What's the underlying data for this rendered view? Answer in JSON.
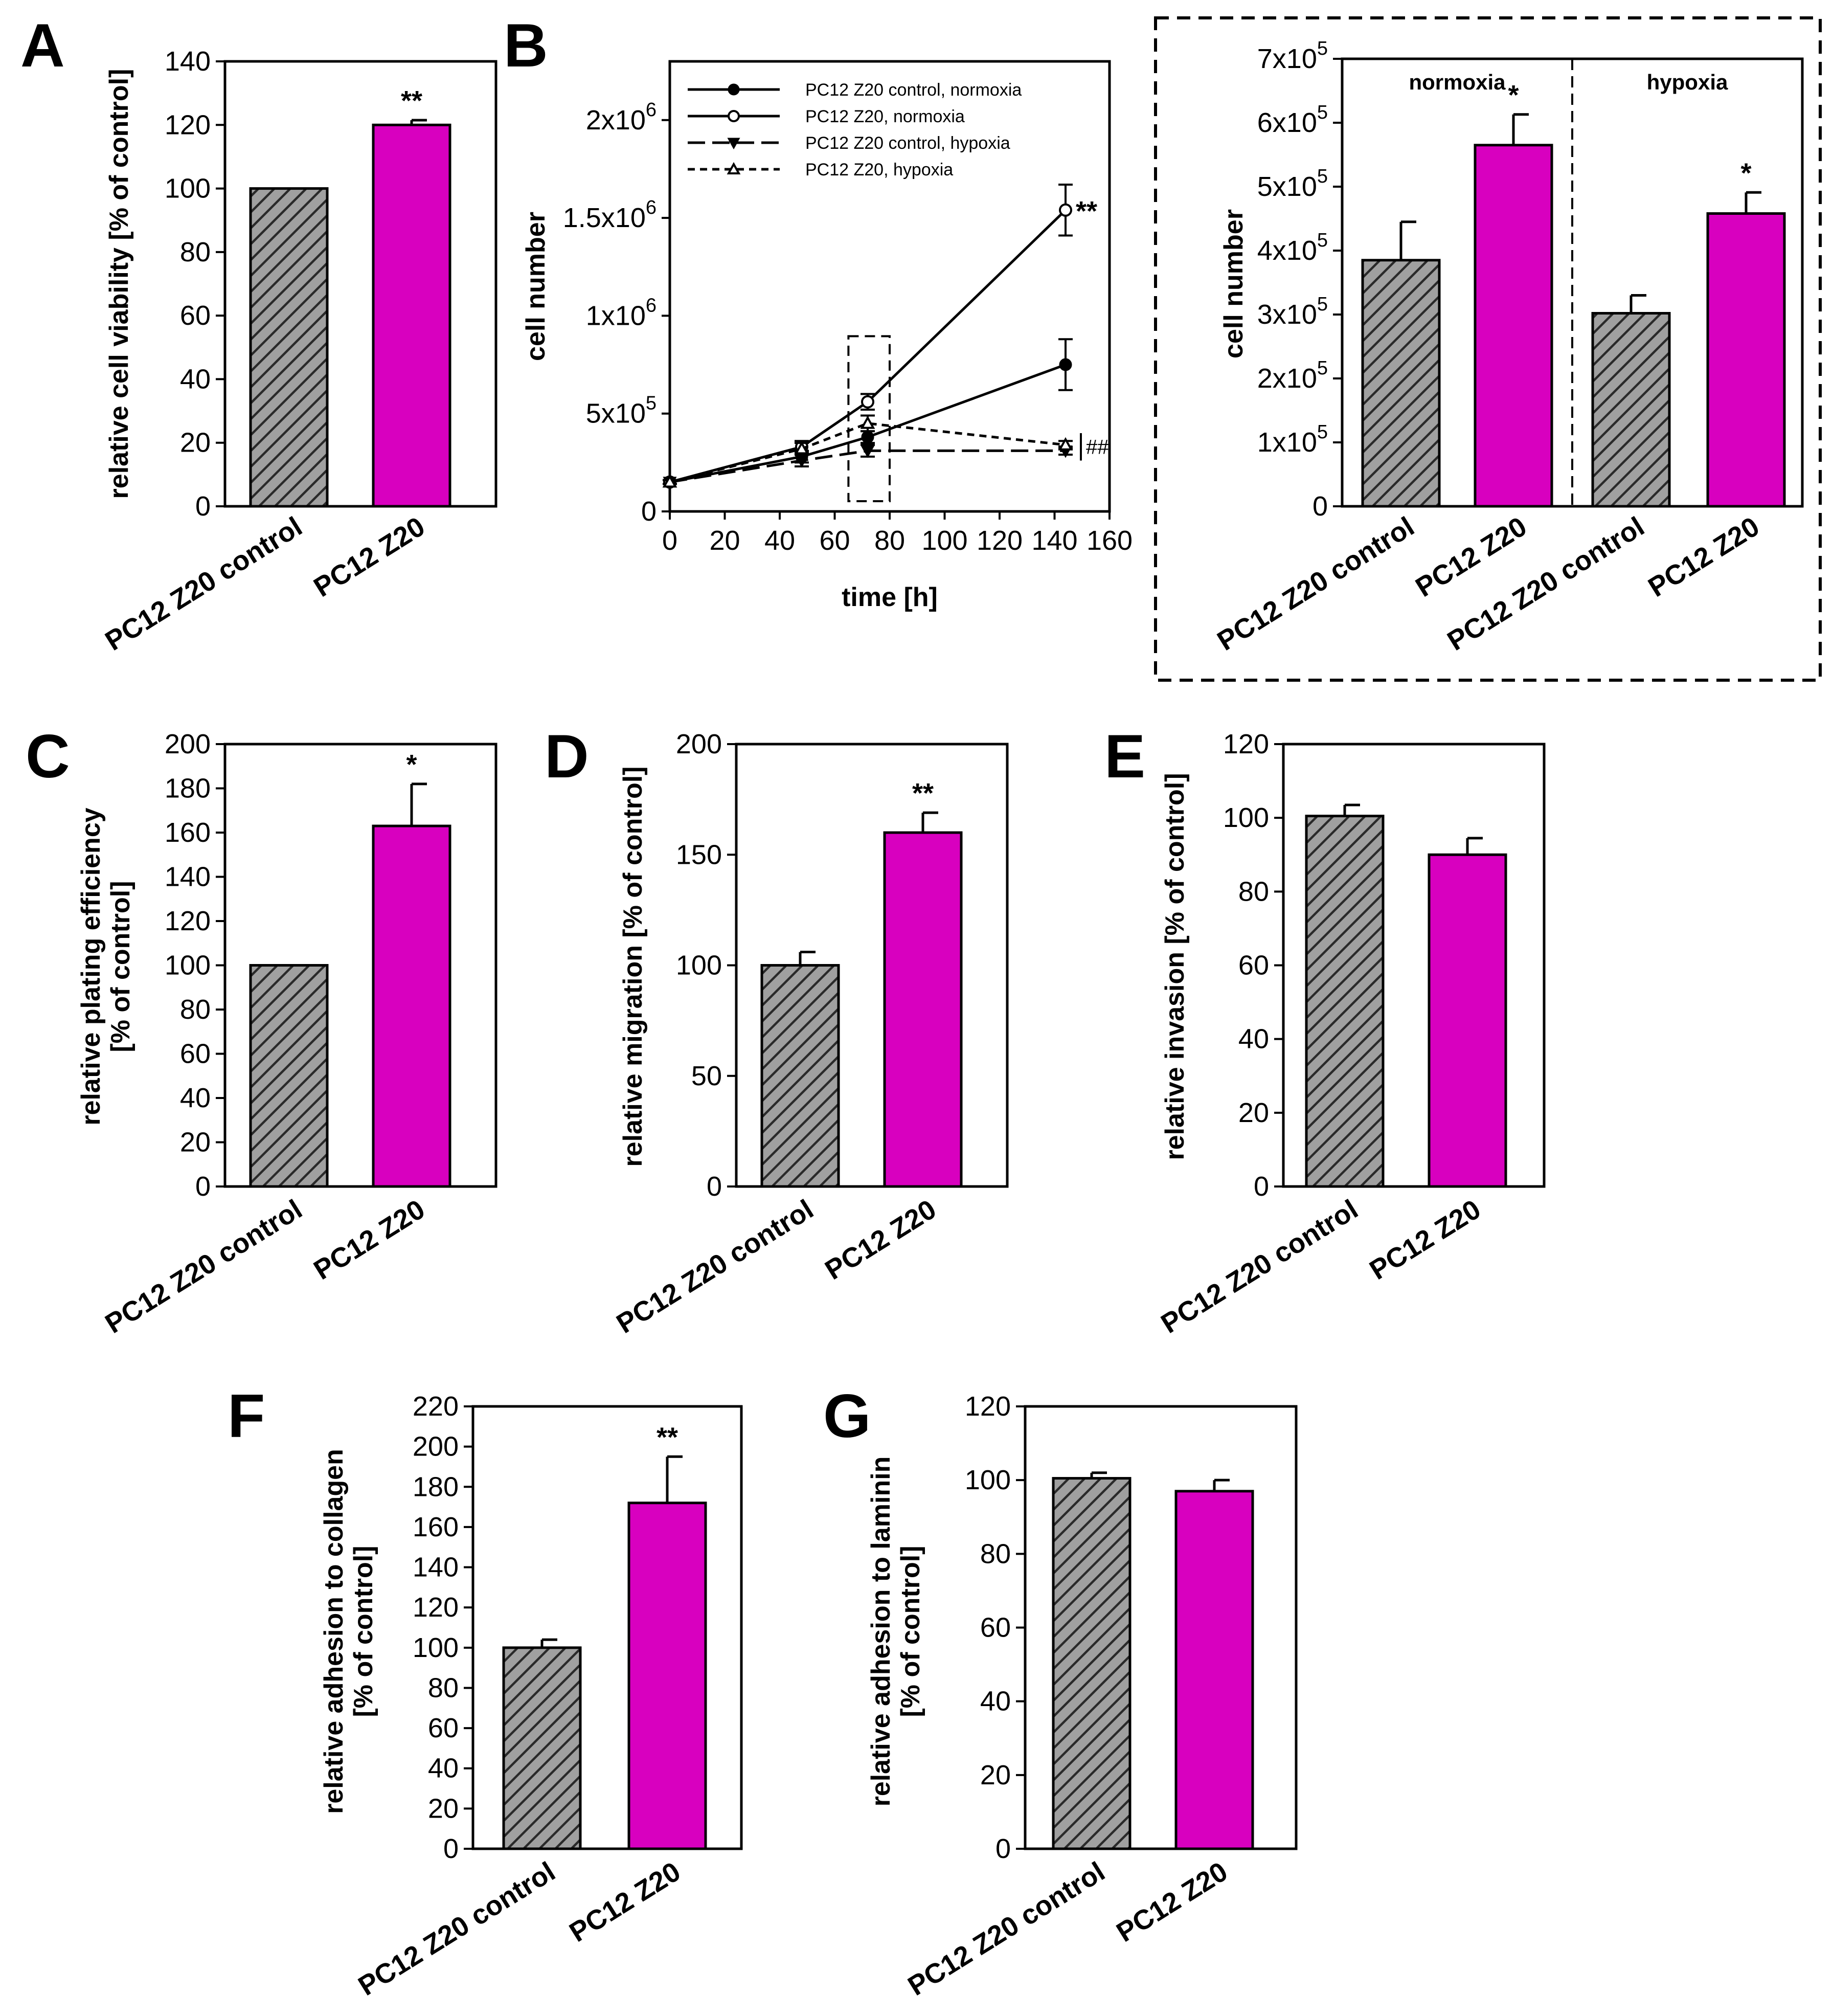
{
  "colors": {
    "control_fill": "#a0a0a0",
    "control_hatch": "#2a2a2a",
    "z20_fill": "#d800bf",
    "axis": "#000000"
  },
  "chart_data": [
    {
      "id": "A",
      "type": "bar",
      "panel_label": "A",
      "categories": [
        "PC12 Z20 control",
        "PC12 Z20"
      ],
      "values": [
        100,
        120
      ],
      "errors": [
        0,
        1.5
      ],
      "significance": [
        "",
        "**"
      ],
      "ylabel": "relative cell viability [% of control]",
      "xlabel": "",
      "ylim": [
        0,
        140
      ],
      "yticks": [
        {
          "value": 0,
          "label": "0"
        },
        {
          "value": 20,
          "label": "20"
        },
        {
          "value": 40,
          "label": "40"
        },
        {
          "value": 60,
          "label": "60"
        },
        {
          "value": 80,
          "label": "80"
        },
        {
          "value": 100,
          "label": "100"
        },
        {
          "value": 120,
          "label": "120"
        },
        {
          "value": 140,
          "label": "140"
        }
      ]
    },
    {
      "id": "B_line",
      "type": "line",
      "panel_label": "B",
      "xlabel": "time [h]",
      "ylabel": "cell number",
      "xlim": [
        0,
        160
      ],
      "ylim": [
        0,
        2300000
      ],
      "xticks": [
        {
          "value": 0,
          "label": "0"
        },
        {
          "value": 20,
          "label": "20"
        },
        {
          "value": 40,
          "label": "40"
        },
        {
          "value": 60,
          "label": "60"
        },
        {
          "value": 80,
          "label": "80"
        },
        {
          "value": 100,
          "label": "100"
        },
        {
          "value": 120,
          "label": "120"
        },
        {
          "value": 140,
          "label": "140"
        },
        {
          "value": 160,
          "label": "160"
        }
      ],
      "yticks": [
        {
          "value": 0,
          "mantissa": "0",
          "exp": ""
        },
        {
          "value": 500000,
          "mantissa": "5x10",
          "exp": "5"
        },
        {
          "value": 1000000,
          "mantissa": "1x10",
          "exp": "6"
        },
        {
          "value": 1500000,
          "mantissa": "1.5x10",
          "exp": "6"
        },
        {
          "value": 2000000,
          "mantissa": "2x10",
          "exp": "6"
        }
      ],
      "series": [
        {
          "name": "PC12 Z20 control, normoxia",
          "marker": "filled-circle",
          "dash": "solid",
          "x": [
            0,
            48,
            72,
            144
          ],
          "y": [
            150000,
            280000,
            380000,
            750000
          ],
          "err": [
            10000,
            30000,
            30000,
            130000
          ]
        },
        {
          "name": "PC12 Z20, normoxia",
          "marker": "open-circle",
          "dash": "solid",
          "x": [
            0,
            48,
            72,
            144
          ],
          "y": [
            150000,
            330000,
            560000,
            1540000
          ],
          "err": [
            10000,
            30000,
            40000,
            130000
          ]
        },
        {
          "name": "PC12 Z20 control, hypoxia",
          "marker": "filled-triangle-down",
          "dash": "long",
          "x": [
            0,
            48,
            72,
            144
          ],
          "y": [
            150000,
            260000,
            310000,
            310000
          ],
          "err": [
            10000,
            30000,
            30000,
            20000
          ]
        },
        {
          "name": "PC12 Z20, hypoxia",
          "marker": "open-triangle-up",
          "dash": "short",
          "x": [
            0,
            48,
            72,
            144
          ],
          "y": [
            150000,
            320000,
            450000,
            340000
          ],
          "err": [
            10000,
            30000,
            40000,
            20000
          ]
        }
      ],
      "annotations": {
        "normoxia_sig": "**",
        "hypoxia_sig": "##"
      },
      "highlight_window_hours": [
        65,
        80
      ]
    },
    {
      "id": "B_inset",
      "type": "bar",
      "panel_label": "",
      "categories": [
        "PC12 Z20 control",
        "PC12 Z20",
        "PC12 Z20 control",
        "PC12 Z20"
      ],
      "groups": [
        "normoxia",
        "hypoxia"
      ],
      "values": [
        385000,
        565000,
        302000,
        458000
      ],
      "errors": [
        60000,
        48000,
        28000,
        33000
      ],
      "significance": [
        "",
        "*",
        "",
        "*"
      ],
      "ylabel": "cell number",
      "xlabel": "",
      "ylim": [
        0,
        700000
      ],
      "yticks": [
        {
          "value": 0,
          "mantissa": "0",
          "exp": ""
        },
        {
          "value": 100000,
          "mantissa": "1x10",
          "exp": "5"
        },
        {
          "value": 200000,
          "mantissa": "2x10",
          "exp": "5"
        },
        {
          "value": 300000,
          "mantissa": "3x10",
          "exp": "5"
        },
        {
          "value": 400000,
          "mantissa": "4x10",
          "exp": "5"
        },
        {
          "value": 500000,
          "mantissa": "5x10",
          "exp": "5"
        },
        {
          "value": 600000,
          "mantissa": "6x10",
          "exp": "5"
        },
        {
          "value": 700000,
          "mantissa": "7x10",
          "exp": "5"
        }
      ]
    },
    {
      "id": "C",
      "type": "bar",
      "panel_label": "C",
      "categories": [
        "PC12 Z20 control",
        "PC12 Z20"
      ],
      "values": [
        100,
        163
      ],
      "errors": [
        0,
        19
      ],
      "significance": [
        "",
        "*"
      ],
      "ylabel": "relative plating efficiency",
      "ylabel2": "[% of control]",
      "xlabel": "",
      "ylim": [
        0,
        200
      ],
      "yticks": [
        {
          "value": 0,
          "label": "0"
        },
        {
          "value": 20,
          "label": "20"
        },
        {
          "value": 40,
          "label": "40"
        },
        {
          "value": 60,
          "label": "60"
        },
        {
          "value": 80,
          "label": "80"
        },
        {
          "value": 100,
          "label": "100"
        },
        {
          "value": 120,
          "label": "120"
        },
        {
          "value": 140,
          "label": "140"
        },
        {
          "value": 160,
          "label": "160"
        },
        {
          "value": 180,
          "label": "180"
        },
        {
          "value": 200,
          "label": "200"
        }
      ]
    },
    {
      "id": "D",
      "type": "bar",
      "panel_label": "D",
      "categories": [
        "PC12 Z20 control",
        "PC12 Z20"
      ],
      "values": [
        100,
        160
      ],
      "errors": [
        6,
        9
      ],
      "significance": [
        "",
        "**"
      ],
      "ylabel": "relative migration [% of control]",
      "xlabel": "",
      "ylim": [
        0,
        200
      ],
      "yticks": [
        {
          "value": 0,
          "label": "0"
        },
        {
          "value": 50,
          "label": "50"
        },
        {
          "value": 100,
          "label": "100"
        },
        {
          "value": 150,
          "label": "150"
        },
        {
          "value": 200,
          "label": "200"
        }
      ]
    },
    {
      "id": "E",
      "type": "bar",
      "panel_label": "E",
      "categories": [
        "PC12 Z20 control",
        "PC12 Z20"
      ],
      "values": [
        100.5,
        90
      ],
      "errors": [
        3,
        4.5
      ],
      "significance": [
        "",
        ""
      ],
      "ylabel": "relative invasion [% of control]",
      "xlabel": "",
      "ylim": [
        0,
        120
      ],
      "yticks": [
        {
          "value": 0,
          "label": "0"
        },
        {
          "value": 20,
          "label": "20"
        },
        {
          "value": 40,
          "label": "40"
        },
        {
          "value": 60,
          "label": "60"
        },
        {
          "value": 80,
          "label": "80"
        },
        {
          "value": 100,
          "label": "100"
        },
        {
          "value": 120,
          "label": "120"
        }
      ]
    },
    {
      "id": "F",
      "type": "bar",
      "panel_label": "F",
      "categories": [
        "PC12 Z20 control",
        "PC12 Z20"
      ],
      "values": [
        100,
        172
      ],
      "errors": [
        4,
        23
      ],
      "significance": [
        "",
        "**"
      ],
      "ylabel": "relative adhesion to collagen",
      "ylabel2": "[% of control]",
      "xlabel": "",
      "ylim": [
        0,
        220
      ],
      "yticks": [
        {
          "value": 0,
          "label": "0"
        },
        {
          "value": 20,
          "label": "20"
        },
        {
          "value": 40,
          "label": "40"
        },
        {
          "value": 60,
          "label": "60"
        },
        {
          "value": 80,
          "label": "80"
        },
        {
          "value": 100,
          "label": "100"
        },
        {
          "value": 120,
          "label": "120"
        },
        {
          "value": 140,
          "label": "140"
        },
        {
          "value": 160,
          "label": "160"
        },
        {
          "value": 180,
          "label": "180"
        },
        {
          "value": 200,
          "label": "200"
        },
        {
          "value": 220,
          "label": "220"
        }
      ]
    },
    {
      "id": "G",
      "type": "bar",
      "panel_label": "G",
      "categories": [
        "PC12 Z20 control",
        "PC12 Z20"
      ],
      "values": [
        100.5,
        97
      ],
      "errors": [
        1.5,
        3
      ],
      "significance": [
        "",
        ""
      ],
      "ylabel": "relative adhesion to laminin",
      "ylabel2": "[% of control]",
      "xlabel": "",
      "ylim": [
        0,
        120
      ],
      "yticks": [
        {
          "value": 0,
          "label": "0"
        },
        {
          "value": 20,
          "label": "20"
        },
        {
          "value": 40,
          "label": "40"
        },
        {
          "value": 60,
          "label": "60"
        },
        {
          "value": 80,
          "label": "80"
        },
        {
          "value": 100,
          "label": "100"
        },
        {
          "value": 120,
          "label": "120"
        }
      ]
    }
  ]
}
